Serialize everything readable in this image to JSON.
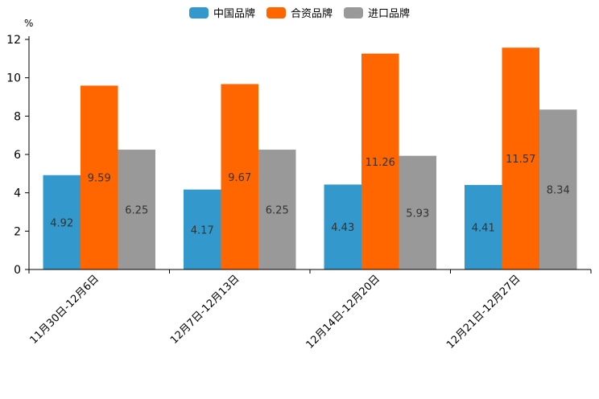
{
  "chart_data": {
    "type": "bar",
    "title": "",
    "xlabel": "",
    "ylabel": "",
    "unit": "%",
    "ylim": [
      0,
      12
    ],
    "yticks": [
      0,
      2,
      4,
      6,
      8,
      10,
      12
    ],
    "grid": false,
    "legend_position": "top-center",
    "categories": [
      "11月30日-12月6日",
      "12月7日-12月13日",
      "12月14日-12月20日",
      "12月21日-12月27日"
    ],
    "series": [
      {
        "name": "中国品牌",
        "color": "#3399cc",
        "values": [
          4.92,
          4.17,
          4.43,
          4.41
        ],
        "labels": [
          "4.92",
          "4.17",
          "4.43",
          "4.41"
        ]
      },
      {
        "name": "合资品牌",
        "color": "#ff6600",
        "values": [
          9.59,
          9.67,
          11.26,
          11.57
        ],
        "labels": [
          "9.59",
          "9.67",
          "11.26",
          "11.57"
        ]
      },
      {
        "name": "进口品牌",
        "color": "#999999",
        "values": [
          6.25,
          6.25,
          5.93,
          8.34
        ],
        "labels": [
          "6.25",
          "6.25",
          "5.93",
          "8.34"
        ]
      }
    ]
  }
}
